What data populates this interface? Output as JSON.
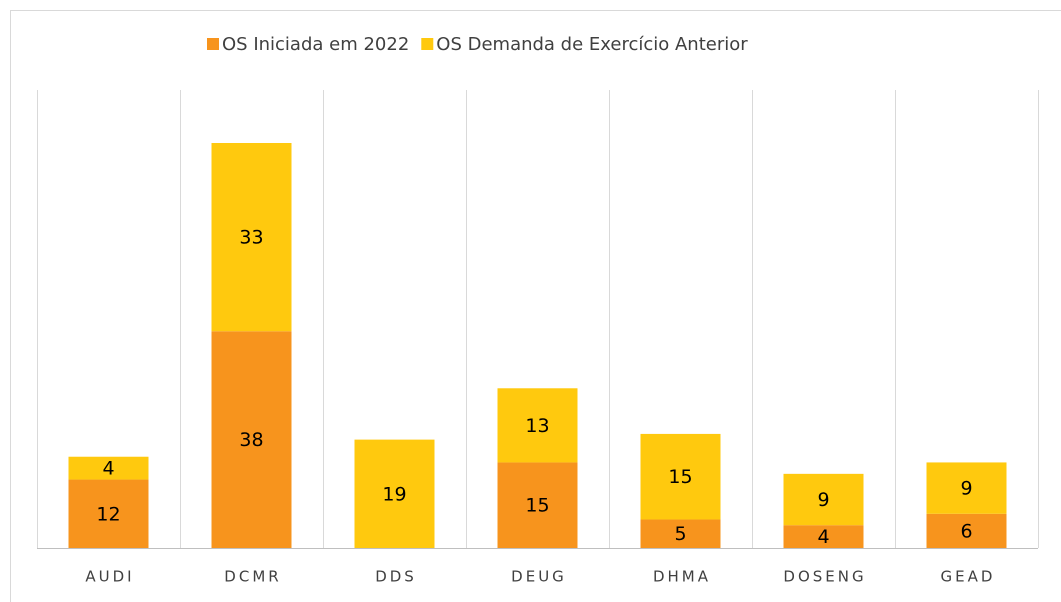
{
  "chart_data": {
    "type": "stacked_bar",
    "categories": [
      "AUDI",
      "DCMR",
      "DDS",
      "DEUG",
      "DHMA",
      "DOSENG",
      "GEAD"
    ],
    "series": [
      {
        "name": "OS Iniciada em 2022",
        "color": "#f7941d",
        "values": [
          12,
          38,
          null,
          15,
          5,
          4,
          6
        ]
      },
      {
        "name": "OS Demanda de Exercício Anterior",
        "color": "#ffc90e",
        "values": [
          4,
          33,
          19,
          13,
          15,
          9,
          9
        ]
      }
    ],
    "legend": "top",
    "grid": "vertical"
  }
}
